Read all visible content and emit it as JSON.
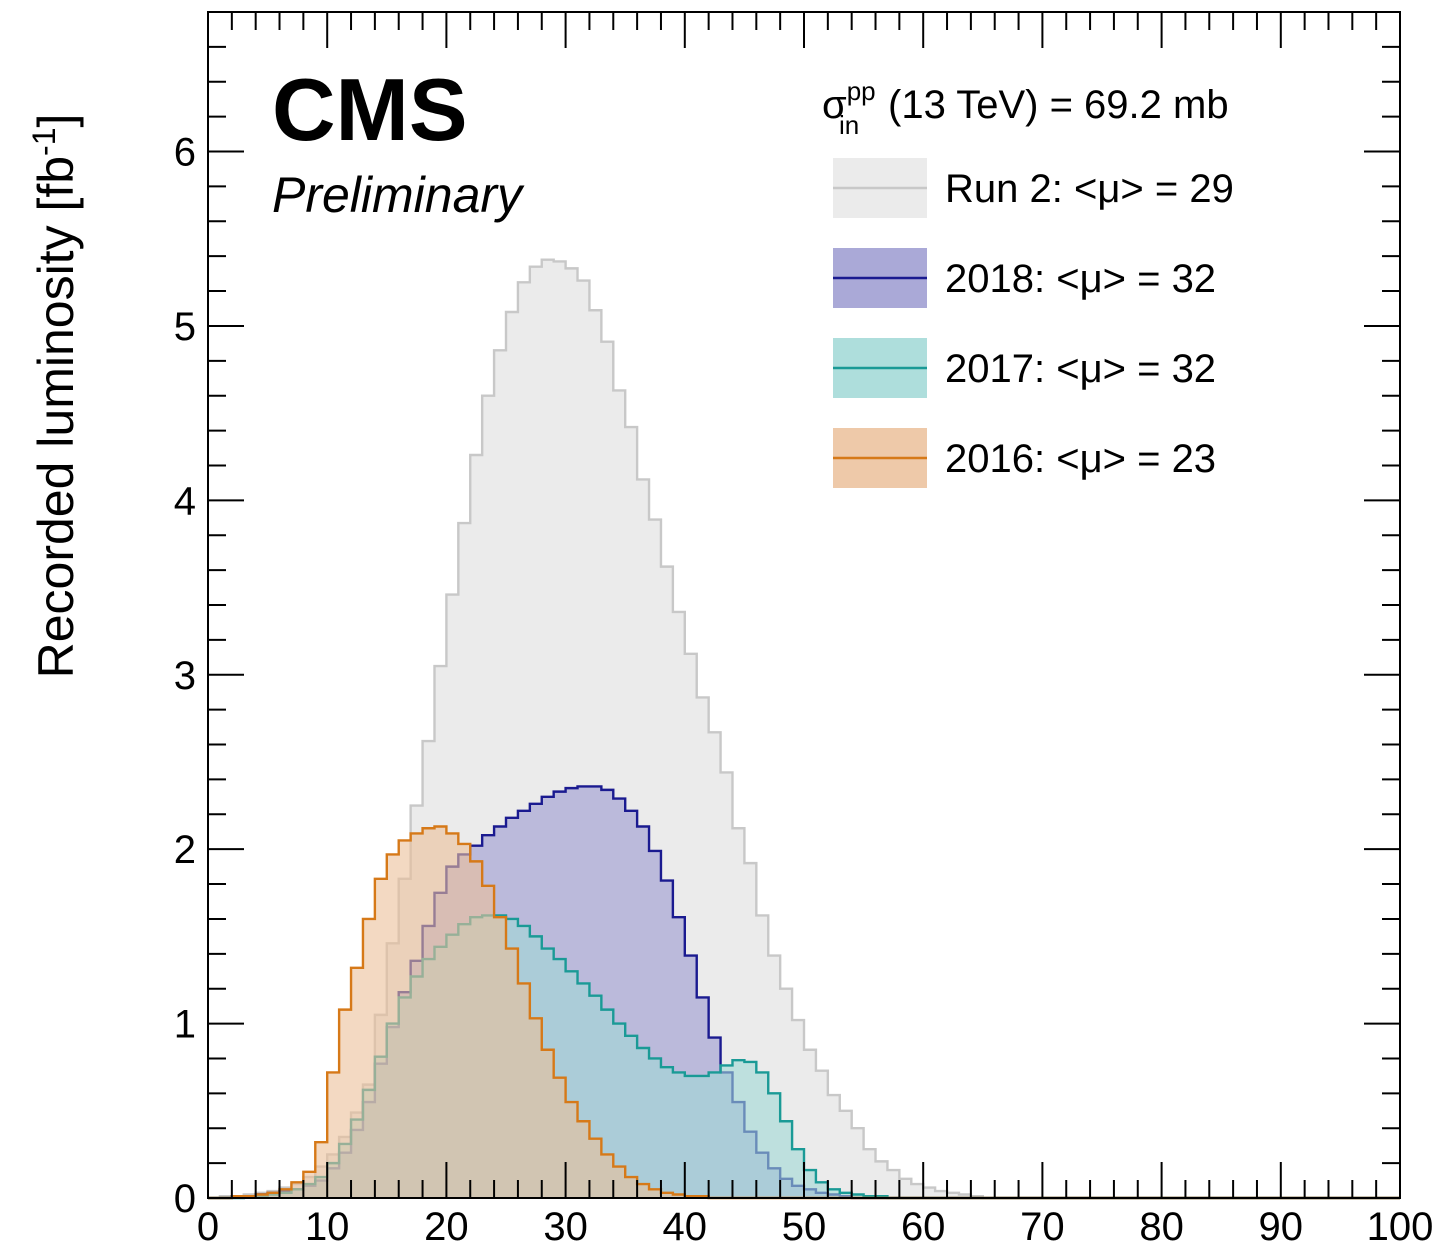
{
  "chart_data": {
    "type": "area",
    "style": "step-histogram",
    "ylabel": "Recorded luminosity [fb",
    "ylabel_sup": "-1",
    "ylabel_close": "]",
    "xlim": [
      0,
      100
    ],
    "ylim": [
      0,
      6.8
    ],
    "x_ticks": [
      0,
      10,
      20,
      30,
      40,
      50,
      60,
      70,
      80,
      90,
      100
    ],
    "y_ticks": [
      0,
      1,
      2,
      3,
      4,
      5,
      6
    ],
    "bin_width": 1,
    "grid": false,
    "legend_position": "top-right",
    "header": {
      "sigma": "σ",
      "sup": "pp",
      "sub": "in",
      "text": "(13 TeV) = 69.2 mb"
    },
    "brand": {
      "name": "CMS",
      "status": "Preliminary"
    },
    "series": [
      {
        "name": "Run 2: <μ> =  29",
        "fill": "#ebebeb",
        "line": "#c8c8c8",
        "values": [
          0,
          0.01,
          0.01,
          0.02,
          0.03,
          0.04,
          0.06,
          0.08,
          0.12,
          0.18,
          0.25,
          0.35,
          0.49,
          0.65,
          1.05,
          1.46,
          1.83,
          2.25,
          2.62,
          3.05,
          3.46,
          3.87,
          4.26,
          4.6,
          4.86,
          5.08,
          5.25,
          5.34,
          5.38,
          5.37,
          5.33,
          5.26,
          5.09,
          4.91,
          4.63,
          4.42,
          4.12,
          3.89,
          3.62,
          3.36,
          3.12,
          2.87,
          2.67,
          2.44,
          2.12,
          1.92,
          1.62,
          1.39,
          1.2,
          1.02,
          0.85,
          0.73,
          0.59,
          0.5,
          0.4,
          0.28,
          0.21,
          0.16,
          0.11,
          0.08,
          0.06,
          0.04,
          0.03,
          0.02,
          0.01,
          0,
          0,
          0,
          0,
          0,
          0,
          0,
          0,
          0,
          0,
          0,
          0,
          0,
          0,
          0,
          0,
          0,
          0,
          0,
          0,
          0,
          0,
          0,
          0,
          0,
          0,
          0,
          0,
          0,
          0,
          0,
          0,
          0,
          0,
          0
        ]
      },
      {
        "name": "2018: <μ> =  32",
        "fill": "#9b9ad0",
        "line": "#1a1a90",
        "values": [
          0,
          0,
          0.01,
          0.01,
          0.02,
          0.03,
          0.04,
          0.05,
          0.07,
          0.1,
          0.17,
          0.26,
          0.39,
          0.55,
          0.77,
          0.98,
          1.18,
          1.36,
          1.56,
          1.75,
          1.9,
          1.97,
          2.02,
          2.08,
          2.13,
          2.18,
          2.22,
          2.26,
          2.3,
          2.33,
          2.35,
          2.36,
          2.36,
          2.34,
          2.29,
          2.22,
          2.13,
          1.99,
          1.82,
          1.61,
          1.39,
          1.15,
          0.92,
          0.72,
          0.55,
          0.38,
          0.26,
          0.17,
          0.11,
          0.07,
          0.05,
          0.03,
          0.02,
          0.01,
          0,
          0,
          0,
          0,
          0,
          0,
          0,
          0,
          0,
          0,
          0,
          0,
          0,
          0,
          0,
          0,
          0,
          0,
          0,
          0,
          0,
          0,
          0,
          0,
          0,
          0,
          0,
          0,
          0,
          0,
          0,
          0,
          0,
          0,
          0,
          0,
          0,
          0,
          0,
          0,
          0,
          0,
          0,
          0,
          0,
          0
        ]
      },
      {
        "name": "2017: <μ> =  32",
        "fill": "#a0d8d6",
        "line": "#1a9a96",
        "values": [
          0,
          0,
          0,
          0.01,
          0.01,
          0.02,
          0.03,
          0.05,
          0.08,
          0.12,
          0.2,
          0.31,
          0.45,
          0.62,
          0.81,
          1,
          1.15,
          1.27,
          1.37,
          1.44,
          1.51,
          1.57,
          1.61,
          1.62,
          1.62,
          1.6,
          1.56,
          1.5,
          1.43,
          1.37,
          1.3,
          1.23,
          1.16,
          1.08,
          1,
          0.93,
          0.86,
          0.8,
          0.75,
          0.72,
          0.7,
          0.7,
          0.72,
          0.76,
          0.79,
          0.78,
          0.72,
          0.6,
          0.44,
          0.28,
          0.16,
          0.09,
          0.05,
          0.03,
          0.02,
          0.01,
          0.01,
          0,
          0,
          0,
          0,
          0,
          0,
          0,
          0,
          0,
          0,
          0,
          0,
          0,
          0,
          0,
          0,
          0,
          0,
          0,
          0,
          0,
          0,
          0,
          0,
          0,
          0,
          0,
          0,
          0,
          0,
          0,
          0,
          0,
          0,
          0,
          0,
          0,
          0,
          0,
          0,
          0,
          0,
          0
        ]
      },
      {
        "name": "2016: <μ> =  23",
        "fill": "#ebc09a",
        "line": "#d67918",
        "values": [
          0,
          0,
          0.01,
          0.01,
          0.02,
          0.03,
          0.05,
          0.09,
          0.15,
          0.32,
          0.72,
          1.08,
          1.32,
          1.6,
          1.83,
          1.97,
          2.05,
          2.09,
          2.12,
          2.13,
          2.09,
          2.03,
          1.93,
          1.79,
          1.61,
          1.43,
          1.23,
          1.03,
          0.85,
          0.69,
          0.55,
          0.44,
          0.34,
          0.25,
          0.18,
          0.12,
          0.08,
          0.05,
          0.03,
          0.02,
          0.01,
          0.01,
          0,
          0,
          0,
          0,
          0,
          0,
          0,
          0,
          0,
          0,
          0,
          0,
          0,
          0,
          0,
          0,
          0,
          0,
          0,
          0,
          0,
          0,
          0,
          0,
          0,
          0,
          0,
          0,
          0,
          0,
          0,
          0,
          0,
          0,
          0,
          0,
          0,
          0,
          0,
          0,
          0,
          0,
          0,
          0,
          0,
          0,
          0,
          0,
          0,
          0,
          0,
          0,
          0,
          0,
          0,
          0,
          0,
          0
        ]
      }
    ]
  }
}
